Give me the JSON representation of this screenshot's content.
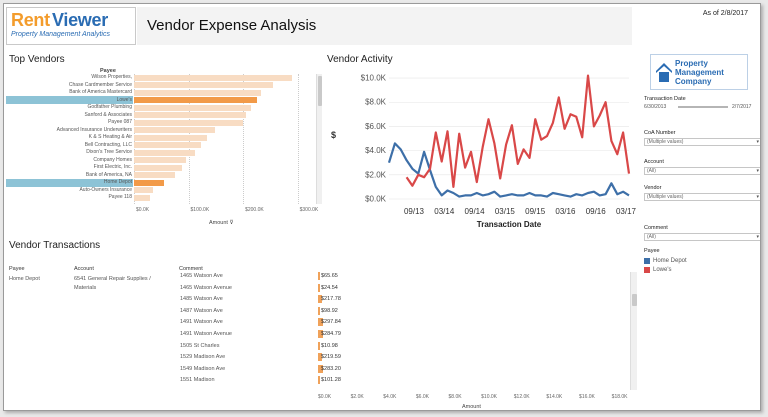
{
  "header": {
    "logo_rent": "Rent",
    "logo_viewer": "Viewer",
    "logo_sub": "Property Management Analytics",
    "title": "Vendor Expense Analysis",
    "as_of": "As of 2/8/2017"
  },
  "top_vendors": {
    "title": "Top Vendors",
    "column_header": "Payee",
    "axis_label": "Amount",
    "axis_ticks": [
      "$0.0K",
      "$100.0K",
      "$200.0K",
      "$300.0K"
    ],
    "highlight_color": "#8dc3d6",
    "bar_color": "#f8dcc3",
    "bar_selected_color": "#f29a48",
    "items": [
      {
        "label": "Wilson Properties,",
        "value": 290,
        "selected": false
      },
      {
        "label": "Chase Cardmember Service",
        "value": 255,
        "selected": false
      },
      {
        "label": "Bank of America Mastercard",
        "value": 232,
        "selected": false
      },
      {
        "label": "Lowe's",
        "value": 225,
        "selected": true
      },
      {
        "label": "Godfather Plumbing",
        "value": 215,
        "selected": false
      },
      {
        "label": "Sanford & Associates",
        "value": 205,
        "selected": false
      },
      {
        "label": "Payee 087",
        "value": 200,
        "selected": false
      },
      {
        "label": "Advanced Insurance Underwriters",
        "value": 148,
        "selected": false
      },
      {
        "label": "K & S Heating & Air",
        "value": 133,
        "selected": false
      },
      {
        "label": "Bell Contracting, LLC",
        "value": 122,
        "selected": false
      },
      {
        "label": "Dixon's Tree Service",
        "value": 112,
        "selected": false
      },
      {
        "label": "Company Homes",
        "value": 95,
        "selected": false
      },
      {
        "label": "First Electric, Inc.",
        "value": 88,
        "selected": false
      },
      {
        "label": "Bank of America, NA",
        "value": 75,
        "selected": false
      },
      {
        "label": "Home Depot",
        "value": 55,
        "selected": true
      },
      {
        "label": "Auto-Owners Insurance",
        "value": 35,
        "selected": false
      },
      {
        "label": "Payee 118",
        "value": 30,
        "selected": false
      }
    ]
  },
  "vendor_activity": {
    "title": "Vendor Activity",
    "chart_data": {
      "type": "line",
      "title": "Vendor Activity",
      "xlabel": "Transaction Date",
      "ylabel": "$",
      "x_ticks": [
        "09/13",
        "03/14",
        "09/14",
        "03/15",
        "09/15",
        "03/16",
        "09/16",
        "03/17"
      ],
      "y_ticks": [
        "$0.0K",
        "$2.0K",
        "$4.0K",
        "$6.0K",
        "$8.0K",
        "$10.0K"
      ],
      "ylim": [
        0,
        10.5
      ],
      "series": [
        {
          "name": "Home Depot",
          "color": "#3d6fa8",
          "values": [
            3.0,
            4.6,
            4.1,
            3.2,
            2.5,
            2.1,
            3.9,
            2.4,
            1.0,
            0.3,
            0.7,
            0.5,
            0.2,
            0.3,
            0.3,
            0.5,
            0.3,
            0.4,
            0.6,
            0.2,
            0.3,
            0.4,
            0.3,
            0.3,
            0.5,
            0.3,
            0.3,
            0.2,
            0.5,
            0.4,
            0.3,
            0.2,
            0.4,
            0.3,
            0.5,
            0.6,
            0.3,
            0.4,
            1.3,
            0.4,
            0.6,
            0.3
          ]
        },
        {
          "name": "Lowe's",
          "color": "#d94848",
          "values": [
            null,
            null,
            null,
            1.8,
            1.1,
            2.0,
            1.8,
            2.5,
            5.5,
            3.1,
            5.6,
            1.0,
            5.4,
            2.6,
            3.9,
            1.4,
            4.3,
            6.6,
            4.6,
            1.7,
            4.5,
            6.1,
            2.9,
            4.1,
            3.4,
            6.6,
            4.9,
            5.2,
            6.3,
            8.4,
            5.8,
            7.0,
            6.8,
            5.1,
            10.2,
            6.0,
            6.9,
            8.0,
            4.8,
            3.7,
            5.5,
            2.1
          ]
        }
      ]
    }
  },
  "transactions": {
    "title": "Vendor Transactions",
    "headers": {
      "payee": "Payee",
      "account": "Account",
      "comment": "Comment"
    },
    "payee": "Home Depot",
    "account_line1": "6541 General Repair Supplies /",
    "account_line2": "Materials",
    "axis_label": "Amount",
    "axis_ticks": [
      "$0.0K",
      "$2.0K",
      "$4.0K",
      "$6.0K",
      "$8.0K",
      "$10.0K",
      "$12.0K",
      "$14.0K",
      "$16.0K",
      "$18.0K"
    ],
    "rows": [
      {
        "comment": "1465 Watson Ave",
        "amount": "$65.65",
        "value": 65.65
      },
      {
        "comment": "1465 Watson Avenue",
        "amount": "$24.54",
        "value": 24.54
      },
      {
        "comment": "1485 Watson Ave",
        "amount": "$217.78",
        "value": 217.78
      },
      {
        "comment": "1487 Watson Ave",
        "amount": "$98.92",
        "value": 98.92
      },
      {
        "comment": "1491 Watson Ave",
        "amount": "$297.84",
        "value": 297.84
      },
      {
        "comment": "1491 Watson Avenue",
        "amount": "$284.79",
        "value": 284.79
      },
      {
        "comment": "1505 St Charles",
        "amount": "$10.98",
        "value": 10.98
      },
      {
        "comment": "1529 Madison Ave",
        "amount": "$219.59",
        "value": 219.59
      },
      {
        "comment": "1549 Madison Ave",
        "amount": "$283.20",
        "value": 283.2
      },
      {
        "comment": "1551 Madison",
        "amount": "$101.28",
        "value": 101.28
      }
    ]
  },
  "filters": {
    "company_line1": "Property",
    "company_line2": "Management",
    "company_line3": "Company",
    "transaction_date_label": "Transaction Date",
    "date_start": "6/30/2013",
    "date_end": "2/7/2017",
    "coa_label": "CoA Number",
    "coa_value": "(Multiple values)",
    "account_label": "Account",
    "account_value": "(All)",
    "vendor_label": "Vendor",
    "vendor_value": "(Multiple values)",
    "comment_label": "Comment",
    "comment_value": "(All)",
    "payee_legend_label": "Payee",
    "legend": [
      {
        "name": "Home Depot",
        "color": "#3d6fa8"
      },
      {
        "name": "Lowe's",
        "color": "#d94848"
      }
    ]
  }
}
